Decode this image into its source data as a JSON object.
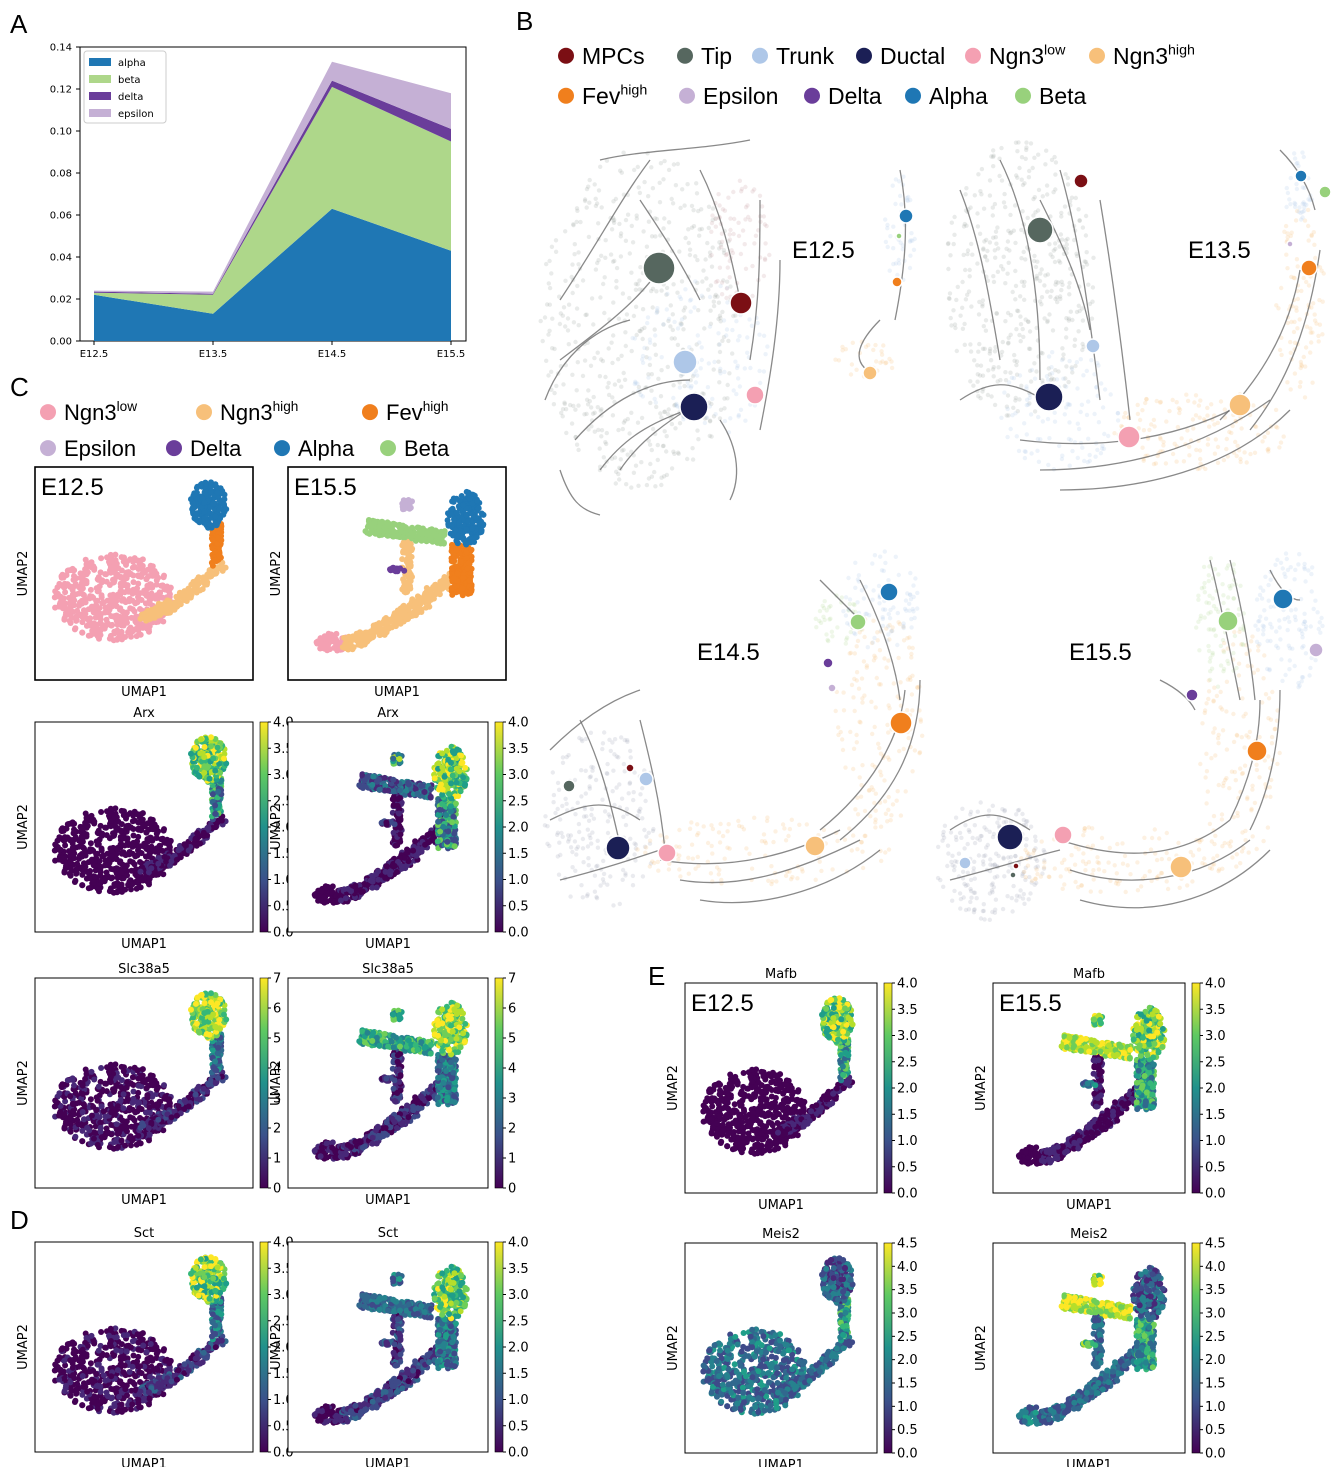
{
  "panels": {
    "A": {
      "letter": "A"
    },
    "B": {
      "letter": "B"
    },
    "C": {
      "letter": "C"
    },
    "D": {
      "letter": "D"
    },
    "E": {
      "letter": "E"
    }
  },
  "chart_data": [
    {
      "type": "area",
      "stacked": true,
      "categories": [
        "E12.5",
        "E13.5",
        "E14.5",
        "E15.5"
      ],
      "series": [
        {
          "name": "alpha",
          "values": [
            0.022,
            0.013,
            0.063,
            0.043
          ],
          "color": "#1f77b4"
        },
        {
          "name": "beta",
          "values": [
            0.001,
            0.009,
            0.058,
            0.052
          ],
          "color": "#aed78a"
        },
        {
          "name": "delta",
          "values": [
            0.0005,
            0.0005,
            0.003,
            0.006
          ],
          "color": "#6a3d9a"
        },
        {
          "name": "epsilon",
          "values": [
            0.0005,
            0.001,
            0.009,
            0.017
          ],
          "color": "#c5b0d5"
        }
      ],
      "yticks": [
        "0.00",
        "0.02",
        "0.04",
        "0.06",
        "0.08",
        "0.10",
        "0.12",
        "0.14"
      ],
      "ylim": [
        0,
        0.14
      ],
      "legend": "top-left",
      "grid": false
    }
  ],
  "legendB": [
    {
      "label": "MPCs",
      "sup": "",
      "color": "#7b0f14"
    },
    {
      "label": "Tip",
      "sup": "",
      "color": "#56675f"
    },
    {
      "label": "Trunk",
      "sup": "",
      "color": "#aec7e8"
    },
    {
      "label": "Ductal",
      "sup": "",
      "color": "#1b1f55"
    },
    {
      "label": "Ngn3",
      "sup": "low",
      "color": "#f4a0b2"
    },
    {
      "label": "Ngn3",
      "sup": "high",
      "color": "#f7c07a"
    },
    {
      "label": "Fev",
      "sup": "high",
      "color": "#f07f1d"
    },
    {
      "label": "Epsilon",
      "sup": "",
      "color": "#c5b0d5"
    },
    {
      "label": "Delta",
      "sup": "",
      "color": "#6a3d9a"
    },
    {
      "label": "Alpha",
      "sup": "",
      "color": "#1f77b4"
    },
    {
      "label": "Beta",
      "sup": "",
      "color": "#98d17c"
    }
  ],
  "legendC": [
    {
      "label": "Ngn3",
      "sup": "low",
      "color": "#f4a0b2"
    },
    {
      "label": "Ngn3",
      "sup": "high",
      "color": "#f7c07a"
    },
    {
      "label": "Fev",
      "sup": "high",
      "color": "#f07f1d"
    },
    {
      "label": "Epsilon",
      "sup": "",
      "color": "#c5b0d5"
    },
    {
      "label": "Delta",
      "sup": "",
      "color": "#6a3d9a"
    },
    {
      "label": "Alpha",
      "sup": "",
      "color": "#1f77b4"
    },
    {
      "label": "Beta",
      "sup": "",
      "color": "#98d17c"
    }
  ],
  "velocity": {
    "E125": "E12.5",
    "E135": "E13.5",
    "E145": "E14.5",
    "E155": "E15.5"
  },
  "umap": {
    "xlabel": "UMAP1",
    "ylabel": "UMAP2",
    "stage_early": "E12.5",
    "stage_late": "E15.5"
  },
  "genes": {
    "arx": "Arx",
    "slc": "Slc38a5",
    "sct": "Sct",
    "mafb": "Mafb",
    "meis2": "Meis2"
  },
  "colorbars": {
    "c4": [
      "4.0",
      "3.5",
      "3.0",
      "2.5",
      "2.0",
      "1.5",
      "1.0",
      "0.5",
      "0.0"
    ],
    "c7": [
      "7",
      "6",
      "5",
      "4",
      "3",
      "2",
      "1",
      "0"
    ],
    "c45": [
      "4.5",
      "4.0",
      "3.5",
      "3.0",
      "2.5",
      "2.0",
      "1.5",
      "1.0",
      "0.5",
      "0.0"
    ]
  }
}
